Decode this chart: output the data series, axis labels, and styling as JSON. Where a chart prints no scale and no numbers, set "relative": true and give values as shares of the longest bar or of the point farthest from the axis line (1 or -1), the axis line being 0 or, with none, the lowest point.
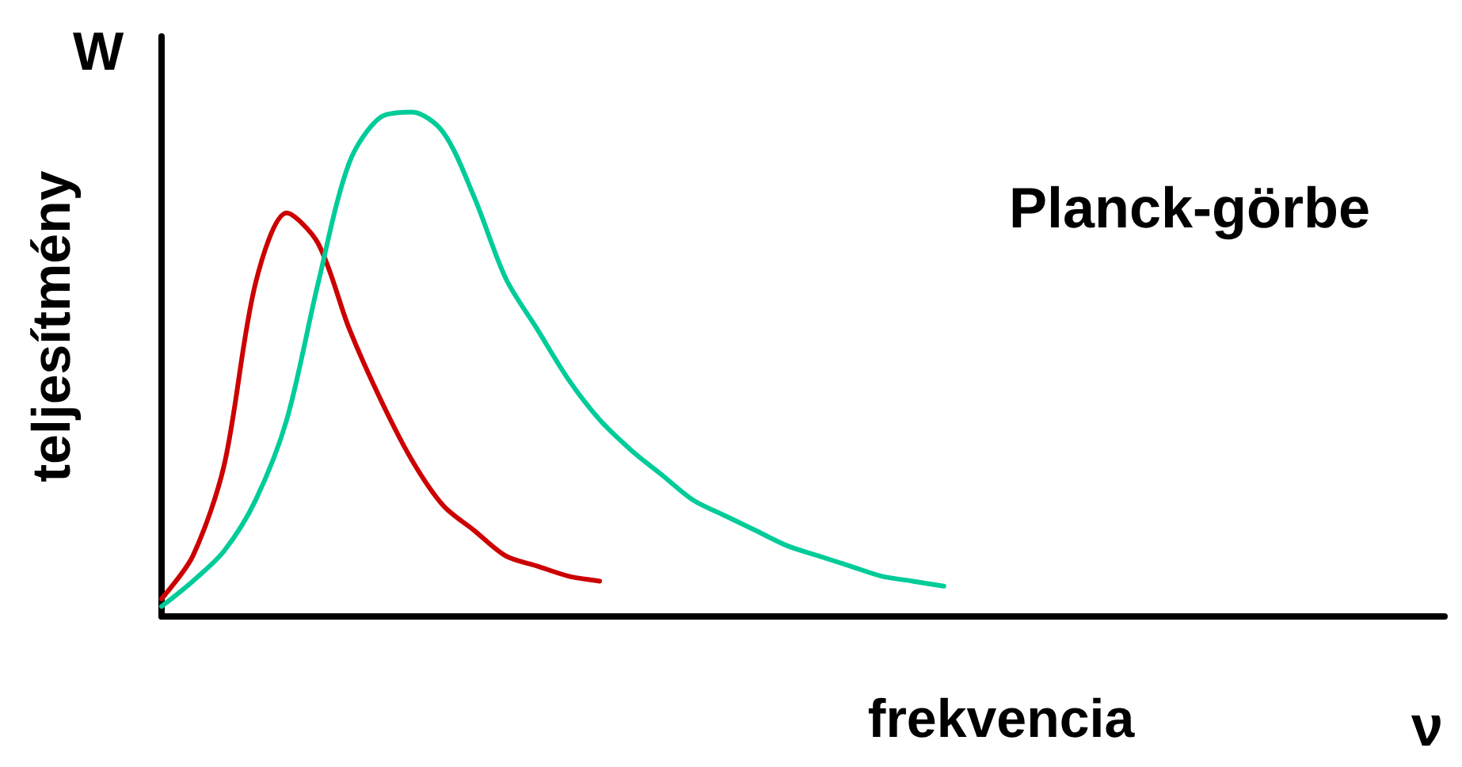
{
  "chart_data": {
    "type": "line",
    "title": "Planck-görbe",
    "xlabel": "frekvencia",
    "ylabel": "teljesítmény",
    "annotations": [
      "W",
      "ν"
    ],
    "relative": true,
    "grid": false,
    "marker": "none",
    "line_style": "solid",
    "categories": [
      null,
      null,
      null,
      null,
      null,
      null,
      null,
      null,
      null,
      null,
      null,
      null,
      null,
      null,
      null,
      null,
      null,
      null,
      null,
      null,
      null,
      null,
      null,
      null,
      null,
      null,
      null,
      null,
      null,
      null,
      null,
      null,
      null,
      null,
      null,
      null,
      null,
      null,
      null,
      null,
      null,
      null
    ],
    "series": [
      {
        "color": "#cc0000",
        "values": [
          0.035,
          0.12,
          0.3,
          0.66,
          0.8,
          0.74,
          0.57,
          0.43,
          0.31,
          0.22,
          0.17,
          0.12,
          0.1,
          0.08,
          0.07,
          null,
          null,
          null,
          null,
          null,
          null,
          null,
          null,
          null,
          null,
          null,
          null,
          null,
          null,
          null,
          null,
          null,
          null,
          null,
          null,
          null,
          null,
          null,
          null,
          null,
          null,
          null
        ]
      },
      {
        "color": "#00cc99",
        "values": [
          0.02,
          0.07,
          0.13,
          0.23,
          0.39,
          0.66,
          0.9,
          0.99,
          1,
          0.96,
          0.83,
          0.67,
          0.57,
          0.47,
          0.39,
          0.33,
          0.28,
          0.23,
          0.2,
          0.17,
          0.14,
          0.12,
          0.1,
          0.08,
          0.07,
          0.06,
          null,
          null,
          null,
          null,
          null,
          null,
          null,
          null,
          null,
          null,
          null,
          null,
          null,
          null,
          null,
          null
        ]
      }
    ]
  }
}
